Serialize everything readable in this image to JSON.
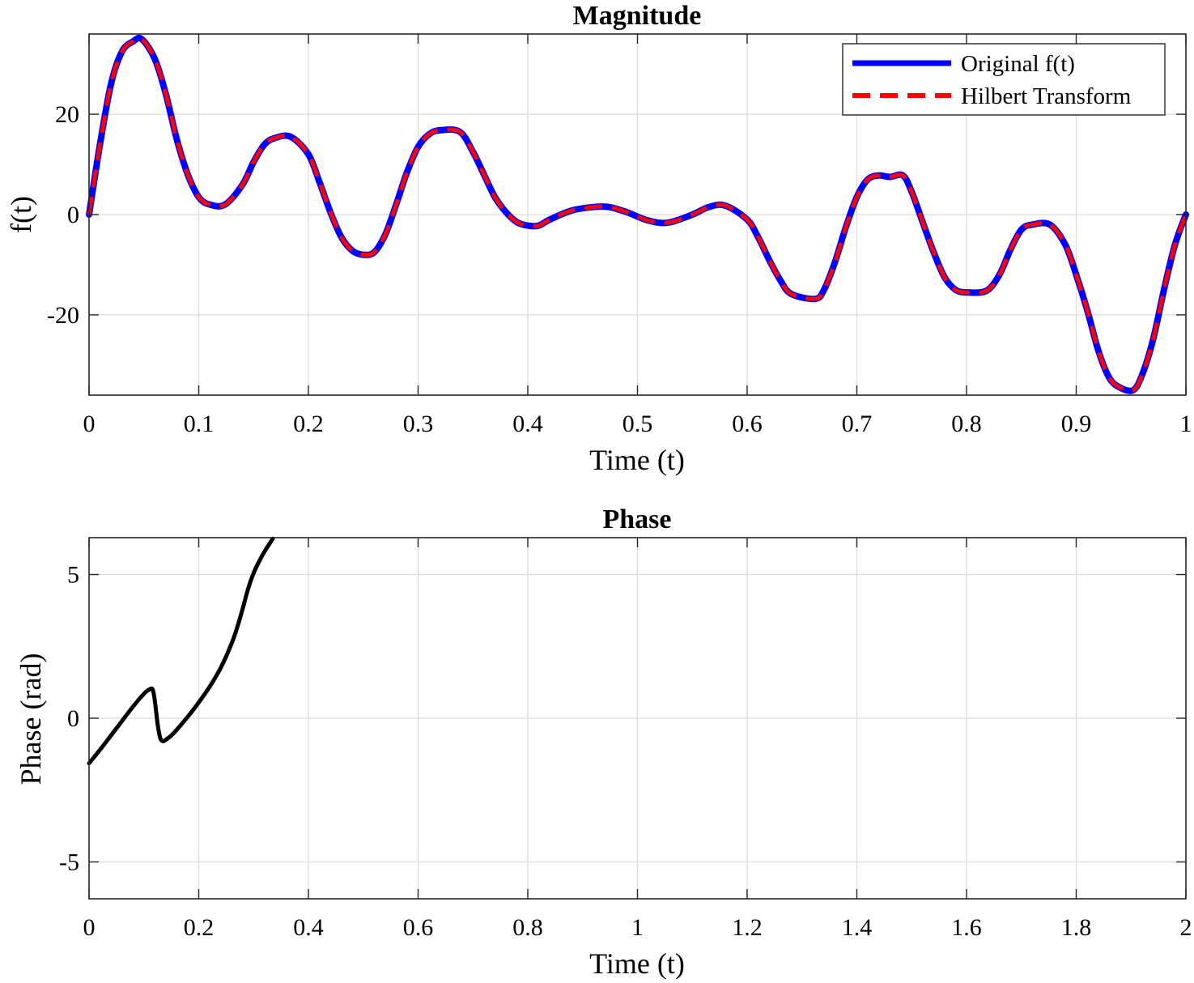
{
  "chart_data": [
    {
      "type": "line",
      "title": "Magnitude",
      "xlabel": "Time (t)",
      "ylabel": "f(t)",
      "xlim": [
        0,
        1
      ],
      "ylim": [
        -36,
        36
      ],
      "xticks": [
        0,
        0.1,
        0.2,
        0.3,
        0.4,
        0.5,
        0.6,
        0.7,
        0.8,
        0.9,
        1
      ],
      "xtick_labels": [
        "0",
        "0.1",
        "0.2",
        "0.3",
        "0.4",
        "0.5",
        "0.6",
        "0.7",
        "0.8",
        "0.9",
        "1"
      ],
      "yticks": [
        -20,
        0,
        20
      ],
      "ytick_labels": [
        "-20",
        "0",
        "20"
      ],
      "grid": true,
      "legend": "top-right",
      "series": [
        {
          "name": "Original f(t)",
          "color": "#0000ff",
          "style": "solid",
          "x": [
            0,
            0.01,
            0.02,
            0.03,
            0.04,
            0.048,
            0.06,
            0.07,
            0.08,
            0.09,
            0.1,
            0.11,
            0.124,
            0.14,
            0.15,
            0.16,
            0.17,
            0.184,
            0.2,
            0.21,
            0.22,
            0.23,
            0.24,
            0.25,
            0.26,
            0.27,
            0.28,
            0.29,
            0.3,
            0.31,
            0.32,
            0.338,
            0.35,
            0.36,
            0.37,
            0.38,
            0.39,
            0.4,
            0.41,
            0.42,
            0.44,
            0.46,
            0.474,
            0.49,
            0.51,
            0.528,
            0.55,
            0.565,
            0.58,
            0.6,
            0.61,
            0.62,
            0.63,
            0.64,
            0.662,
            0.67,
            0.68,
            0.69,
            0.7,
            0.71,
            0.72,
            0.73,
            0.742,
            0.75,
            0.76,
            0.77,
            0.78,
            0.79,
            0.8,
            0.818,
            0.83,
            0.84,
            0.85,
            0.86,
            0.876,
            0.89,
            0.9,
            0.91,
            0.92,
            0.93,
            0.94,
            0.952,
            0.96,
            0.97,
            0.98,
            0.99,
            1
          ],
          "y": [
            0,
            14,
            26,
            32.5,
            34.5,
            35,
            31,
            24,
            15,
            8,
            3.5,
            2,
            2,
            6,
            10.5,
            14,
            15.3,
            15.5,
            12,
            6.5,
            0.5,
            -4.5,
            -7.2,
            -8,
            -7.5,
            -4,
            2,
            8.5,
            13.5,
            16,
            16.8,
            16.5,
            12.5,
            8,
            3.5,
            0.5,
            -1.5,
            -2.2,
            -2.2,
            -1,
            0.8,
            1.5,
            1.5,
            0.5,
            -1.2,
            -1.6,
            0,
            1.5,
            1.8,
            -1,
            -4.5,
            -9,
            -13,
            -15.8,
            -16.8,
            -15,
            -9.5,
            -2.5,
            3.5,
            7,
            7.8,
            7.5,
            7.8,
            4.5,
            -1.5,
            -7.5,
            -12.5,
            -15,
            -15.5,
            -15.2,
            -12,
            -7,
            -3,
            -2,
            -2,
            -6,
            -12,
            -19,
            -27,
            -32.5,
            -34.5,
            -35,
            -32,
            -25,
            -15,
            -6,
            0
          ]
        },
        {
          "name": "Hilbert Transform",
          "color": "#ff0000",
          "style": "dashed",
          "x": [
            0,
            0.01,
            0.02,
            0.03,
            0.04,
            0.048,
            0.06,
            0.07,
            0.08,
            0.09,
            0.1,
            0.11,
            0.124,
            0.14,
            0.15,
            0.16,
            0.17,
            0.184,
            0.2,
            0.21,
            0.22,
            0.23,
            0.24,
            0.25,
            0.26,
            0.27,
            0.28,
            0.29,
            0.3,
            0.31,
            0.32,
            0.338,
            0.35,
            0.36,
            0.37,
            0.38,
            0.39,
            0.4,
            0.41,
            0.42,
            0.44,
            0.46,
            0.474,
            0.49,
            0.51,
            0.528,
            0.55,
            0.565,
            0.58,
            0.6,
            0.61,
            0.62,
            0.63,
            0.64,
            0.662,
            0.67,
            0.68,
            0.69,
            0.7,
            0.71,
            0.72,
            0.73,
            0.742,
            0.75,
            0.76,
            0.77,
            0.78,
            0.79,
            0.8,
            0.818,
            0.83,
            0.84,
            0.85,
            0.86,
            0.876,
            0.89,
            0.9,
            0.91,
            0.92,
            0.93,
            0.94,
            0.952,
            0.96,
            0.97,
            0.98,
            0.99,
            1
          ],
          "y": [
            0,
            14,
            26,
            32.5,
            34.5,
            35,
            31,
            24,
            15,
            8,
            3.5,
            2,
            2,
            6,
            10.5,
            14,
            15.3,
            15.5,
            12,
            6.5,
            0.5,
            -4.5,
            -7.2,
            -8,
            -7.5,
            -4,
            2,
            8.5,
            13.5,
            16,
            16.8,
            16.5,
            12.5,
            8,
            3.5,
            0.5,
            -1.5,
            -2.2,
            -2.2,
            -1,
            0.8,
            1.5,
            1.5,
            0.5,
            -1.2,
            -1.6,
            0,
            1.5,
            1.8,
            -1,
            -4.5,
            -9,
            -13,
            -15.8,
            -16.8,
            -15,
            -9.5,
            -2.5,
            3.5,
            7,
            7.8,
            7.5,
            7.8,
            4.5,
            -1.5,
            -7.5,
            -12.5,
            -15,
            -15.5,
            -15.2,
            -12,
            -7,
            -3,
            -2,
            -2,
            -6,
            -12,
            -19,
            -27,
            -32.5,
            -34.5,
            -35,
            -32,
            -25,
            -15,
            -6,
            0
          ]
        }
      ]
    },
    {
      "type": "line",
      "title": "Phase",
      "xlabel": "Time (t)",
      "ylabel": "Phase (rad)",
      "xlim": [
        0,
        2
      ],
      "ylim": [
        -6.283,
        6.283
      ],
      "xticks": [
        0,
        0.2,
        0.4,
        0.6,
        0.8,
        1,
        1.2,
        1.4,
        1.6,
        1.8,
        2
      ],
      "xtick_labels": [
        "0",
        "0.2",
        "0.4",
        "0.6",
        "0.8",
        "1",
        "1.2",
        "1.4",
        "1.6",
        "1.8",
        "2"
      ],
      "yticks": [
        -5,
        0,
        5
      ],
      "ytick_labels": [
        "-5",
        "0",
        "5"
      ],
      "grid": true,
      "series": [
        {
          "color": "#000000",
          "style": "solid",
          "x": [
            0,
            0.02,
            0.04,
            0.06,
            0.08,
            0.1,
            0.11,
            0.116,
            0.12,
            0.125,
            0.13,
            0.135,
            0.14,
            0.15,
            0.16,
            0.18,
            0.2,
            0.22,
            0.24,
            0.26,
            0.27,
            0.28,
            0.29,
            0.3,
            0.31,
            0.32,
            0.33,
            0.335
          ],
          "y": [
            -1.57,
            -1.1,
            -0.6,
            -0.1,
            0.4,
            0.85,
            1.0,
            1.0,
            0.6,
            -0.2,
            -0.7,
            -0.8,
            -0.75,
            -0.6,
            -0.4,
            0.05,
            0.55,
            1.1,
            1.75,
            2.6,
            3.15,
            3.8,
            4.5,
            5.05,
            5.45,
            5.8,
            6.1,
            6.25
          ]
        }
      ]
    }
  ]
}
